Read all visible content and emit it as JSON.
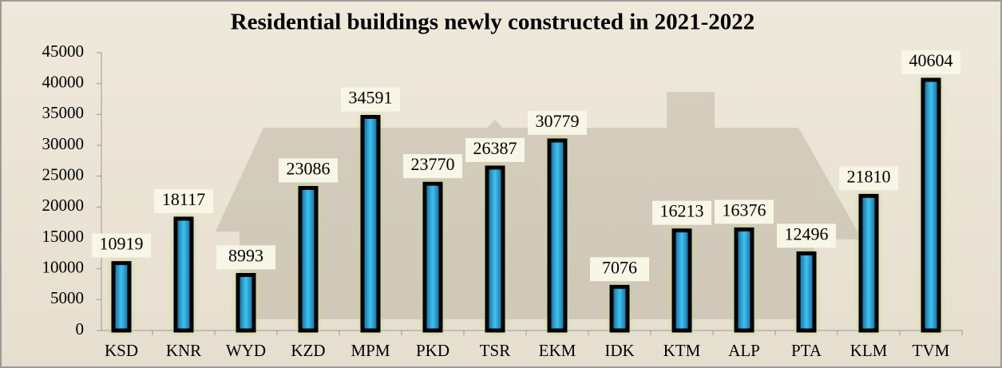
{
  "chart_data": {
    "type": "bar",
    "title": "Residential buildings newly constructed in 2021-2022",
    "categories": [
      "KSD",
      "KNR",
      "WYD",
      "KZD",
      "MPM",
      "PKD",
      "TSR",
      "EKM",
      "IDK",
      "KTM",
      "ALP",
      "PTA",
      "KLM",
      "TVM"
    ],
    "values": [
      10919,
      18117,
      8993,
      23086,
      34591,
      23770,
      26387,
      30779,
      7076,
      16213,
      16376,
      12496,
      21810,
      40604
    ],
    "color": "#2aa8d8",
    "ylim": [
      0,
      45000
    ],
    "yticks": [
      0,
      5000,
      10000,
      15000,
      20000,
      25000,
      30000,
      35000,
      40000,
      45000
    ]
  }
}
